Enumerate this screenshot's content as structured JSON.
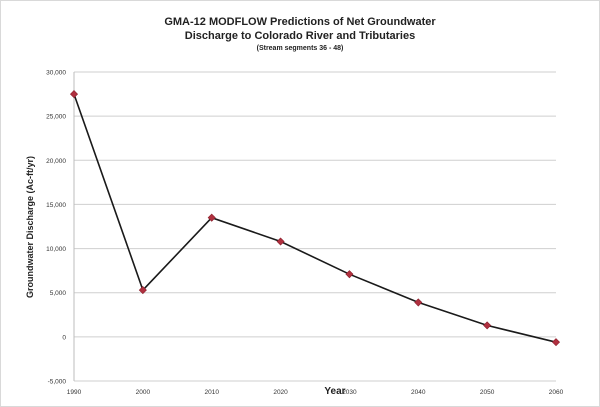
{
  "chart_data": {
    "type": "line",
    "title_line1": "GMA-12 MODFLOW Predictions of Net Groundwater",
    "title_line2": "Discharge to Colorado River and Tributaries",
    "subtitle": "(Stream segments 36 - 48)",
    "xlabel": "Year",
    "ylabel": "Groundwater Discharge (Ac-ft/yr)",
    "x": [
      1990,
      2000,
      2010,
      2020,
      2030,
      2040,
      2050,
      2060
    ],
    "y": [
      27500,
      5300,
      13500,
      10800,
      7100,
      3900,
      1300,
      -600
    ],
    "ylim": [
      -5000,
      30000
    ],
    "yticks": [
      -5000,
      0,
      5000,
      10000,
      15000,
      20000,
      25000,
      30000
    ],
    "ytick_labels": [
      "-5,000",
      "0",
      "5,000",
      "10,000",
      "15,000",
      "20,000",
      "25,000",
      "30,000"
    ],
    "xticks": [
      "1990",
      "2000",
      "2010",
      "2020",
      "2030",
      "2040",
      "2050",
      "2060"
    ],
    "grid": true,
    "legend": "none",
    "line_color": "#1a1a1a",
    "marker_color": "#b0303f"
  }
}
